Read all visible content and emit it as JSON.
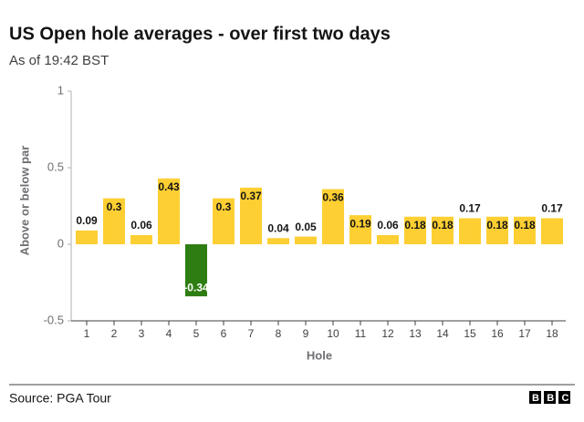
{
  "chart_data": {
    "type": "bar",
    "title": "US Open hole averages - over first two days",
    "subtitle": "As of 19:42 BST",
    "y_label": "Above or below par",
    "x_label": "Hole",
    "source": "Source: PGA Tour",
    "logo": "BBC",
    "categories": [
      "1",
      "2",
      "3",
      "4",
      "5",
      "6",
      "7",
      "8",
      "9",
      "10",
      "11",
      "12",
      "13",
      "14",
      "15",
      "16",
      "17",
      "18"
    ],
    "values": [
      0.09,
      0.3,
      0.06,
      0.43,
      -0.34,
      0.3,
      0.37,
      0.04,
      0.05,
      0.36,
      0.19,
      0.06,
      0.18,
      0.18,
      0.17,
      0.18,
      0.18,
      0.17
    ],
    "color": "#fdcf33",
    "negative_color": "#2e7d12",
    "ylim": [
      -0.5,
      1
    ],
    "yticks": [
      1,
      0.5,
      0,
      -0.5
    ],
    "grid": false
  }
}
